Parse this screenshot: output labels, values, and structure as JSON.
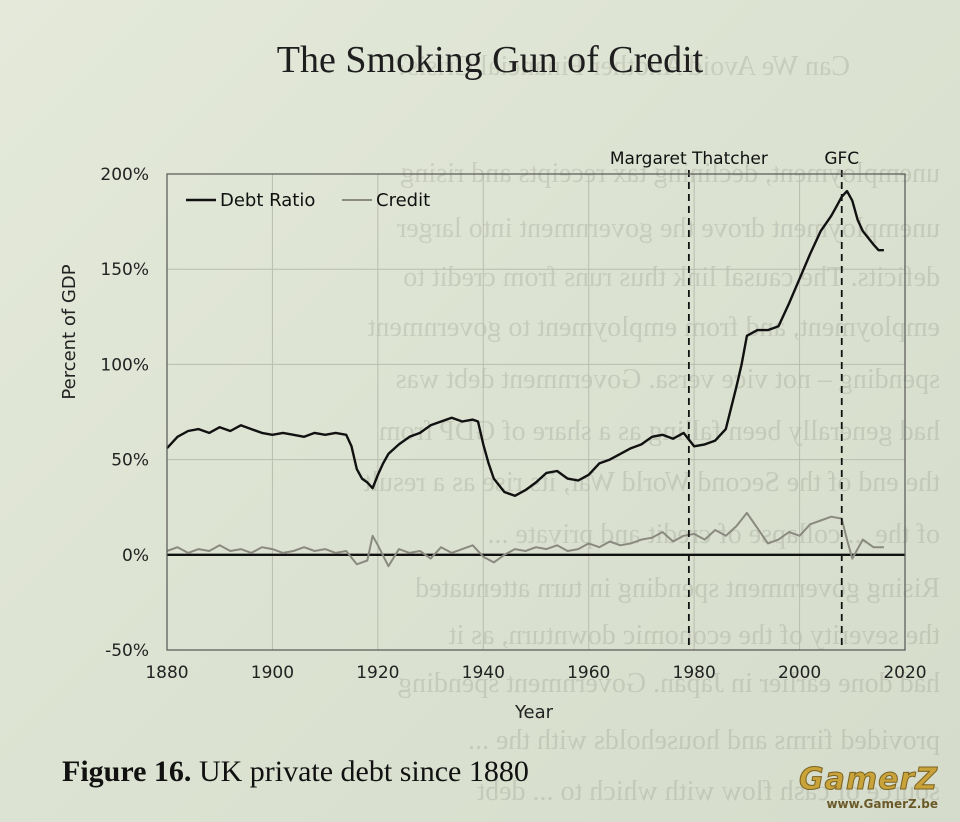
{
  "page": {
    "title": "The Smoking Gun of Credit",
    "caption_bold": "Figure 16.",
    "caption_rest": " UK private debt since 1880",
    "watermark_logo": "GamerZ",
    "watermark_url": "www.GamerZ.be",
    "background_text": [
      "Can We Avoid Another Financial Crisis?",
      "unemployment, declining tax receipts and rising",
      "unemployment drove the government into larger",
      "deficits. The causal link thus runs from credit to",
      "employment, and from employment to government",
      "spending – not vice versa. Government debt was",
      "had generally been falling as a share of GDP from",
      "the end of the Second World War, its rise as a result",
      "of the ... collapse of credit and private ...",
      "Rising government spending in turn attenuated",
      "the severity of the economic downturn, as it",
      "had done earlier in Japan. Government spending",
      "provided firms and households with the ...",
      "source of cash flow with which to ... debt"
    ]
  },
  "chart_data": {
    "type": "line",
    "title": "The Smoking Gun of Credit",
    "xlabel": "Year",
    "ylabel": "Percent of GDP",
    "xlim": [
      1880,
      2020
    ],
    "ylim": [
      -50,
      200
    ],
    "x_ticks": [
      1880,
      1900,
      1920,
      1940,
      1960,
      1980,
      2000,
      2020
    ],
    "x_tick_labels": [
      "1880",
      "1900",
      "1920",
      "1940",
      "1960",
      "1980",
      "2000",
      "2020"
    ],
    "y_ticks": [
      -50,
      0,
      50,
      100,
      150,
      200
    ],
    "y_tick_labels": [
      "-50%",
      "0%",
      "50%",
      "100%",
      "150%",
      "200%"
    ],
    "grid": true,
    "legend_position": "top-left",
    "series": [
      {
        "name": "Debt Ratio",
        "color": "#111111",
        "x": [
          1880,
          1882,
          1884,
          1886,
          1888,
          1890,
          1892,
          1894,
          1896,
          1898,
          1900,
          1902,
          1904,
          1906,
          1908,
          1910,
          1912,
          1914,
          1915,
          1916,
          1917,
          1918,
          1919,
          1920,
          1921,
          1922,
          1924,
          1926,
          1928,
          1930,
          1932,
          1934,
          1936,
          1938,
          1939,
          1940,
          1941,
          1942,
          1944,
          1946,
          1948,
          1950,
          1952,
          1954,
          1956,
          1958,
          1960,
          1962,
          1964,
          1966,
          1968,
          1970,
          1972,
          1974,
          1976,
          1978,
          1980,
          1982,
          1984,
          1986,
          1988,
          1989,
          1990,
          1992,
          1994,
          1996,
          1998,
          2000,
          2002,
          2004,
          2006,
          2007,
          2008,
          2009,
          2010,
          2011,
          2012,
          2014,
          2015,
          2016
        ],
        "y": [
          56,
          62,
          65,
          66,
          64,
          67,
          65,
          68,
          66,
          64,
          63,
          64,
          63,
          62,
          64,
          63,
          64,
          63,
          57,
          45,
          40,
          38,
          35,
          42,
          48,
          53,
          58,
          62,
          64,
          68,
          70,
          72,
          70,
          71,
          70,
          58,
          48,
          40,
          33,
          31,
          34,
          38,
          43,
          44,
          40,
          39,
          42,
          48,
          50,
          53,
          56,
          58,
          62,
          63,
          61,
          64,
          57,
          58,
          60,
          66,
          88,
          100,
          115,
          118,
          118,
          120,
          132,
          145,
          158,
          170,
          178,
          183,
          188,
          191,
          186,
          176,
          170,
          163,
          160,
          160
        ]
      },
      {
        "name": "Credit",
        "color": "#8a8a80",
        "x": [
          1880,
          1882,
          1884,
          1886,
          1888,
          1890,
          1892,
          1894,
          1896,
          1898,
          1900,
          1902,
          1904,
          1906,
          1908,
          1910,
          1912,
          1914,
          1916,
          1918,
          1919,
          1920,
          1922,
          1924,
          1926,
          1928,
          1930,
          1932,
          1934,
          1936,
          1938,
          1940,
          1942,
          1944,
          1946,
          1948,
          1950,
          1952,
          1954,
          1956,
          1958,
          1960,
          1962,
          1964,
          1966,
          1968,
          1970,
          1972,
          1974,
          1976,
          1978,
          1980,
          1982,
          1984,
          1986,
          1988,
          1990,
          1992,
          1994,
          1996,
          1998,
          2000,
          2002,
          2004,
          2006,
          2008,
          2009,
          2010,
          2012,
          2014,
          2016
        ],
        "y": [
          2,
          4,
          1,
          3,
          2,
          5,
          2,
          3,
          1,
          4,
          3,
          1,
          2,
          4,
          2,
          3,
          1,
          2,
          -5,
          -3,
          10,
          5,
          -6,
          3,
          1,
          2,
          -2,
          4,
          1,
          3,
          5,
          -1,
          -4,
          0,
          3,
          2,
          4,
          3,
          5,
          2,
          3,
          6,
          4,
          7,
          5,
          6,
          8,
          9,
          12,
          7,
          10,
          11,
          8,
          13,
          10,
          15,
          22,
          14,
          6,
          8,
          12,
          10,
          16,
          18,
          20,
          19,
          8,
          -2,
          8,
          4,
          4
        ]
      }
    ],
    "annotations": [
      {
        "label": "Margaret Thatcher",
        "x": 1979,
        "style": "dashed-vertical-line"
      },
      {
        "label": "GFC",
        "x": 2008,
        "style": "dashed-vertical-line"
      }
    ]
  }
}
